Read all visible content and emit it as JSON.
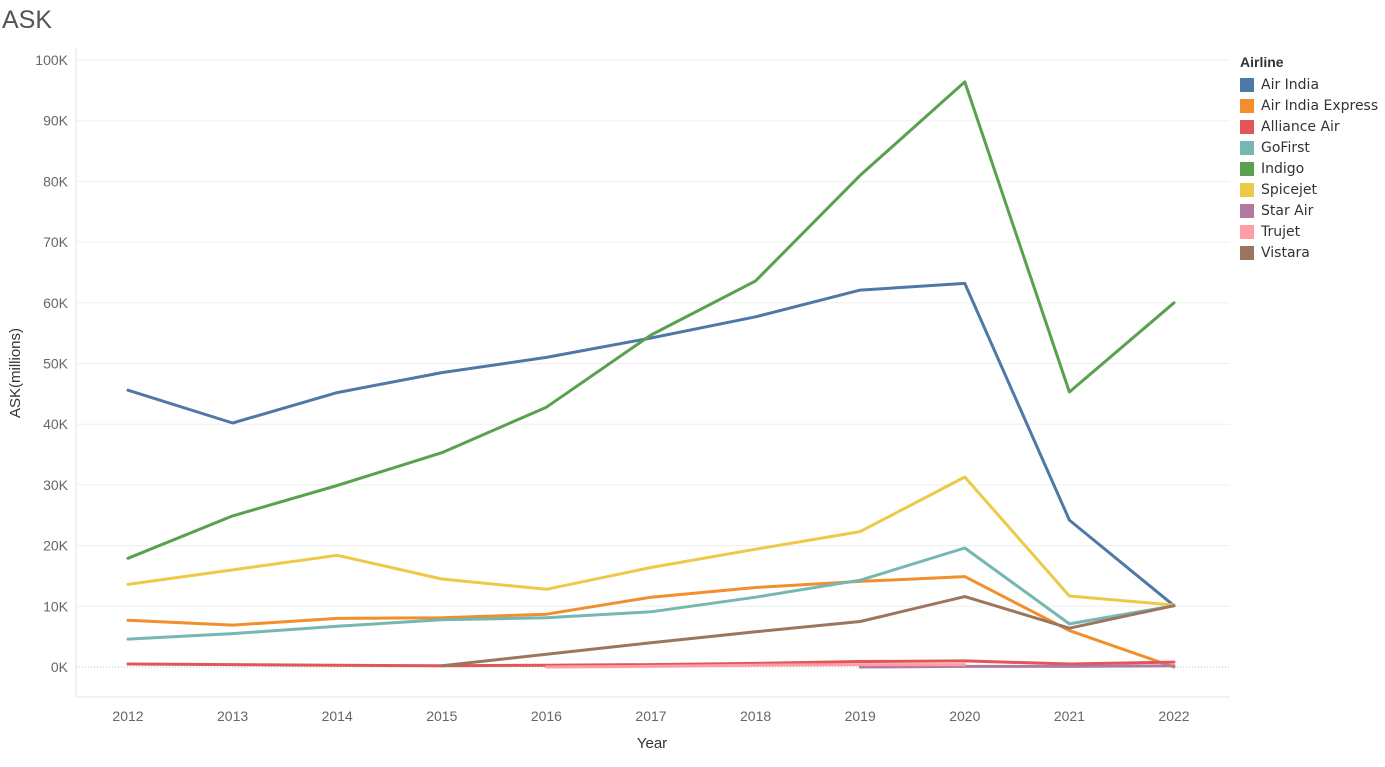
{
  "title": "ASK",
  "legend": {
    "title": "Airline"
  },
  "chart_data": {
    "type": "line",
    "title": "ASK",
    "xlabel": "Year",
    "ylabel": "ASK(millions)",
    "x": [
      "2012",
      "2013",
      "2014",
      "2015",
      "2016",
      "2017",
      "2018",
      "2019",
      "2020",
      "2021",
      "2022"
    ],
    "ylim": [
      -5000,
      100000
    ],
    "yticks": [
      0,
      10000,
      20000,
      30000,
      40000,
      50000,
      60000,
      70000,
      80000,
      90000,
      100000
    ],
    "ytick_labels": [
      "0K",
      "10K",
      "20K",
      "30K",
      "40K",
      "50K",
      "60K",
      "70K",
      "80K",
      "90K",
      "100K"
    ],
    "grid": "horizontal",
    "legend_position": "right",
    "series": [
      {
        "name": "Air India",
        "color": "#4e79a7",
        "values": [
          45600,
          40200,
          45200,
          48500,
          51000,
          54200,
          57700,
          62100,
          63200,
          24200,
          10100
        ]
      },
      {
        "name": "Air India Express",
        "color": "#f28e2b",
        "values": [
          7700,
          6900,
          8000,
          8100,
          8700,
          11500,
          13100,
          14100,
          14900,
          6000,
          0
        ]
      },
      {
        "name": "Alliance Air",
        "color": "#e15759",
        "values": [
          500,
          400,
          300,
          200,
          300,
          400,
          600,
          900,
          1000,
          500,
          800
        ]
      },
      {
        "name": "GoFirst",
        "color": "#76b7b2",
        "values": [
          4600,
          5500,
          6700,
          7800,
          8100,
          9100,
          11500,
          14300,
          19600,
          7100,
          10100
        ]
      },
      {
        "name": "Indigo",
        "color": "#59a14f",
        "values": [
          17900,
          24900,
          29900,
          35300,
          42800,
          54700,
          63600,
          81000,
          96400,
          45300,
          60000
        ]
      },
      {
        "name": "Spicejet",
        "color": "#edc948",
        "values": [
          13600,
          16000,
          18400,
          14500,
          12800,
          16400,
          19400,
          22300,
          31300,
          11700,
          10200
        ]
      },
      {
        "name": "Star Air",
        "color": "#b07aa1",
        "values": [
          null,
          null,
          null,
          null,
          null,
          null,
          null,
          0,
          100,
          100,
          200
        ]
      },
      {
        "name": "Trujet",
        "color": "#ff9da7",
        "values": [
          null,
          null,
          null,
          null,
          0,
          100,
          300,
          400,
          400,
          null,
          null
        ]
      },
      {
        "name": "Vistara",
        "color": "#9c755f",
        "values": [
          null,
          null,
          null,
          200,
          2100,
          4000,
          5800,
          7500,
          11600,
          6400,
          10100
        ]
      }
    ]
  }
}
